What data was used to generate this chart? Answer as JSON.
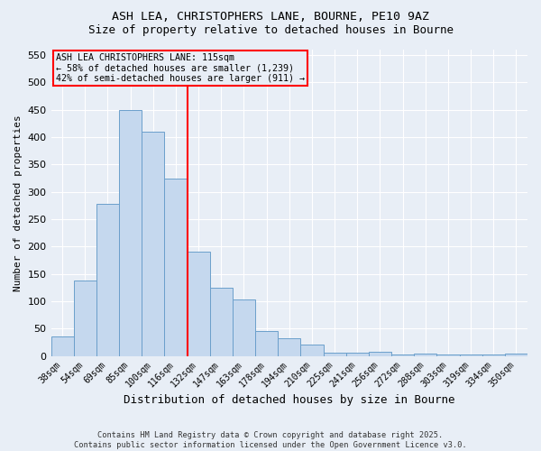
{
  "title_line1": "ASH LEA, CHRISTOPHERS LANE, BOURNE, PE10 9AZ",
  "title_line2": "Size of property relative to detached houses in Bourne",
  "xlabel": "Distribution of detached houses by size in Bourne",
  "ylabel": "Number of detached properties",
  "categories": [
    "38sqm",
    "54sqm",
    "69sqm",
    "85sqm",
    "100sqm",
    "116sqm",
    "132sqm",
    "147sqm",
    "163sqm",
    "178sqm",
    "194sqm",
    "210sqm",
    "225sqm",
    "241sqm",
    "256sqm",
    "272sqm",
    "288sqm",
    "303sqm",
    "319sqm",
    "334sqm",
    "350sqm"
  ],
  "values": [
    35,
    138,
    278,
    450,
    410,
    325,
    190,
    125,
    103,
    45,
    33,
    20,
    6,
    6,
    8,
    3,
    5,
    3,
    3,
    3,
    5
  ],
  "bar_color": "#c5d8ee",
  "bar_edge_color": "#6b9fcb",
  "reference_line_index": 5,
  "annotation_title": "ASH LEA CHRISTOPHERS LANE: 115sqm",
  "annotation_line1": "← 58% of detached houses are smaller (1,239)",
  "annotation_line2": "42% of semi-detached houses are larger (911) →",
  "annotation_box_color": "red",
  "ylim": [
    0,
    560
  ],
  "yticks": [
    0,
    50,
    100,
    150,
    200,
    250,
    300,
    350,
    400,
    450,
    500,
    550
  ],
  "background_color": "#e8eef6",
  "grid_color": "#ffffff",
  "footer_line1": "Contains HM Land Registry data © Crown copyright and database right 2025.",
  "footer_line2": "Contains public sector information licensed under the Open Government Licence v3.0."
}
